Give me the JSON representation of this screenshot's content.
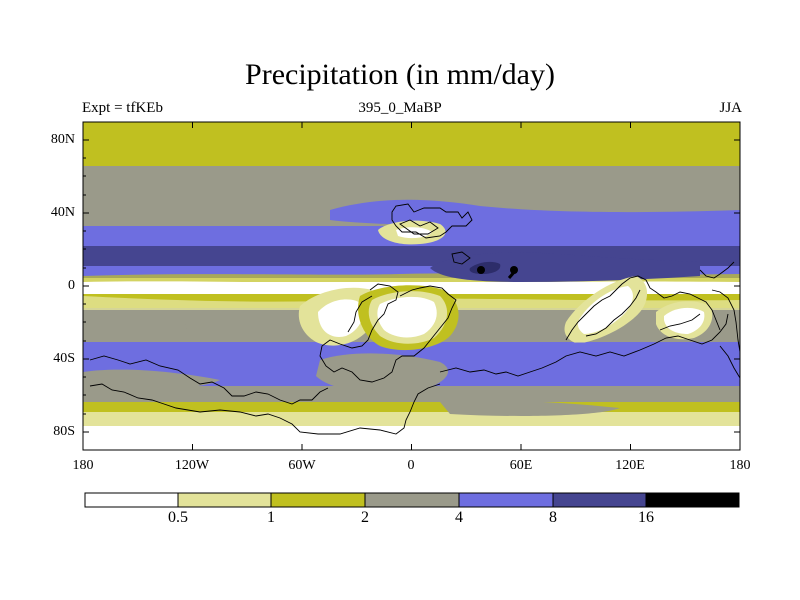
{
  "title": "Precipitation (in mm/day)",
  "subtitle_left": "Expt = tfKEb",
  "subtitle_center": "395_0_MaBP",
  "subtitle_right": "JJA",
  "lat_labels": [
    "80N",
    "40N",
    "0",
    "40S",
    "80S"
  ],
  "lon_labels": [
    "180",
    "120W",
    "60W",
    "0",
    "60E",
    "120E",
    "180"
  ],
  "colorbar": {
    "levels": [
      "0.5",
      "1",
      "2",
      "4",
      "8",
      "16"
    ],
    "colors": [
      "#ffffff",
      "#e3e39a",
      "#c0c020",
      "#9a9a8a",
      "#6e6ee0",
      "#454590",
      "#000000"
    ]
  }
}
